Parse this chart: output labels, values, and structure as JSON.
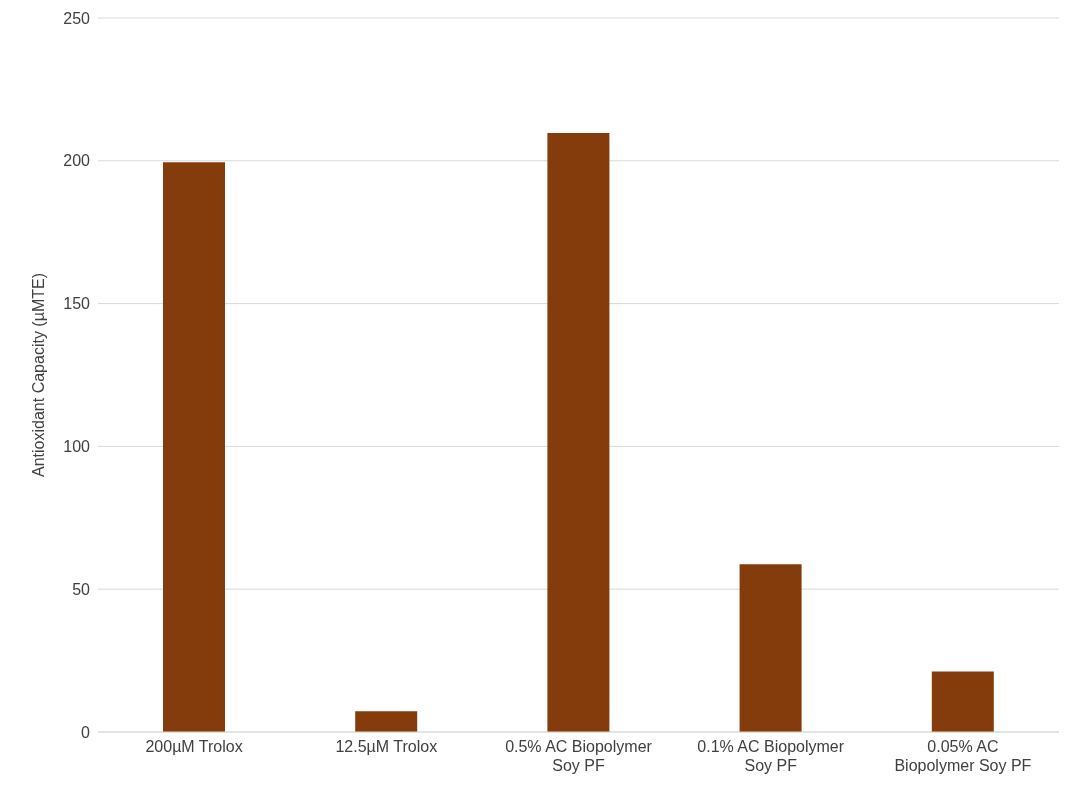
{
  "chart_data": {
    "type": "bar",
    "ylabel": "Antioxidant Capacity (µMTE)",
    "categories": [
      "200µM Trolox",
      "12.5µM Trolox",
      "0.5% AC Biopolymer Soy PF",
      "0.1% AC Biopolymer Soy PF",
      "0.05% AC Biopolymer Soy PF"
    ],
    "values": [
      199.5,
      7.3,
      209.7,
      58.7,
      21.2
    ],
    "color": "#843c0c",
    "ylim": [
      0,
      250
    ],
    "yticks": [
      0,
      50,
      100,
      150,
      200,
      250
    ],
    "grid": "y"
  }
}
